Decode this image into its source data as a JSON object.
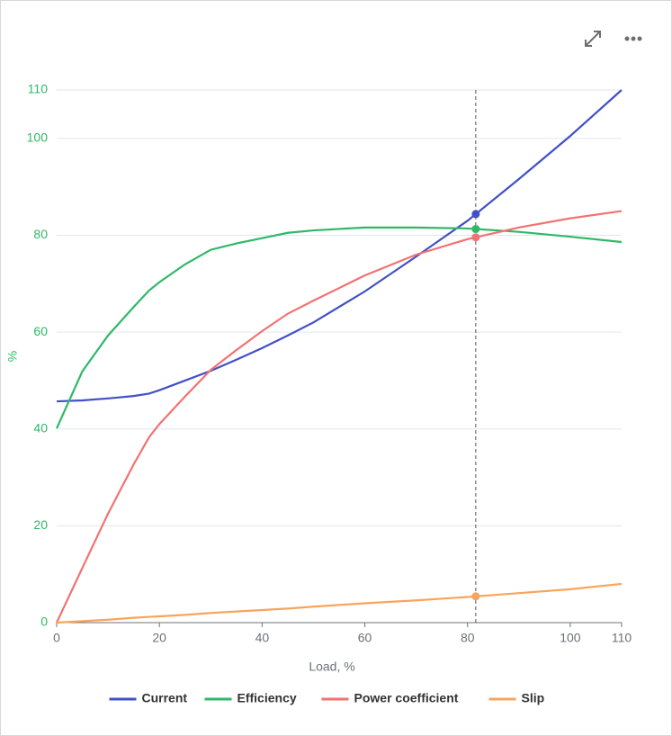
{
  "chart_data": {
    "type": "line",
    "x_label": "Load, %",
    "y_label": "%",
    "x": [
      0,
      5,
      10,
      15,
      18,
      20,
      25,
      30,
      35,
      40,
      45,
      50,
      60,
      70,
      80,
      90,
      100,
      110
    ],
    "series": [
      {
        "name": "Current",
        "color": "#4050c8",
        "values": [
          45.7,
          45.9,
          46.3,
          46.8,
          47.3,
          48,
          50,
          52,
          54.3,
          56.7,
          59.3,
          62,
          68.4,
          75.6,
          83,
          91.6,
          100.5,
          110
        ]
      },
      {
        "name": "Efficiency",
        "color": "#2fb868",
        "values": [
          40.1,
          51.9,
          59.3,
          65.2,
          68.6,
          70.3,
          74,
          77,
          78.3,
          79.4,
          80.5,
          81,
          81.6,
          81.6,
          81.4,
          80.7,
          79.7,
          78.6
        ]
      },
      {
        "name": "Power coefficient",
        "color": "#f27272",
        "values": [
          0,
          11.3,
          22.5,
          32.7,
          38.3,
          41,
          46.7,
          52.2,
          56.3,
          60.2,
          63.8,
          66.5,
          71.7,
          76,
          79.2,
          81.6,
          83.5,
          85
        ]
      },
      {
        "name": "Slip",
        "color": "#f7a55c",
        "values": [
          0,
          0.3,
          0.6,
          1,
          1.2,
          1.3,
          1.6,
          2,
          2.3,
          2.6,
          2.9,
          3.3,
          4,
          4.6,
          5.3,
          6.1,
          6.9,
          8
        ]
      }
    ],
    "xlim": [
      0,
      110
    ],
    "xticks": [
      0,
      20,
      40,
      60,
      80,
      100,
      110
    ],
    "ylim": [
      0,
      110
    ],
    "yticks": [
      0,
      20,
      40,
      60,
      80,
      100,
      110
    ],
    "grid": true,
    "crosshair_x": 81.6,
    "legend": "bottom"
  }
}
